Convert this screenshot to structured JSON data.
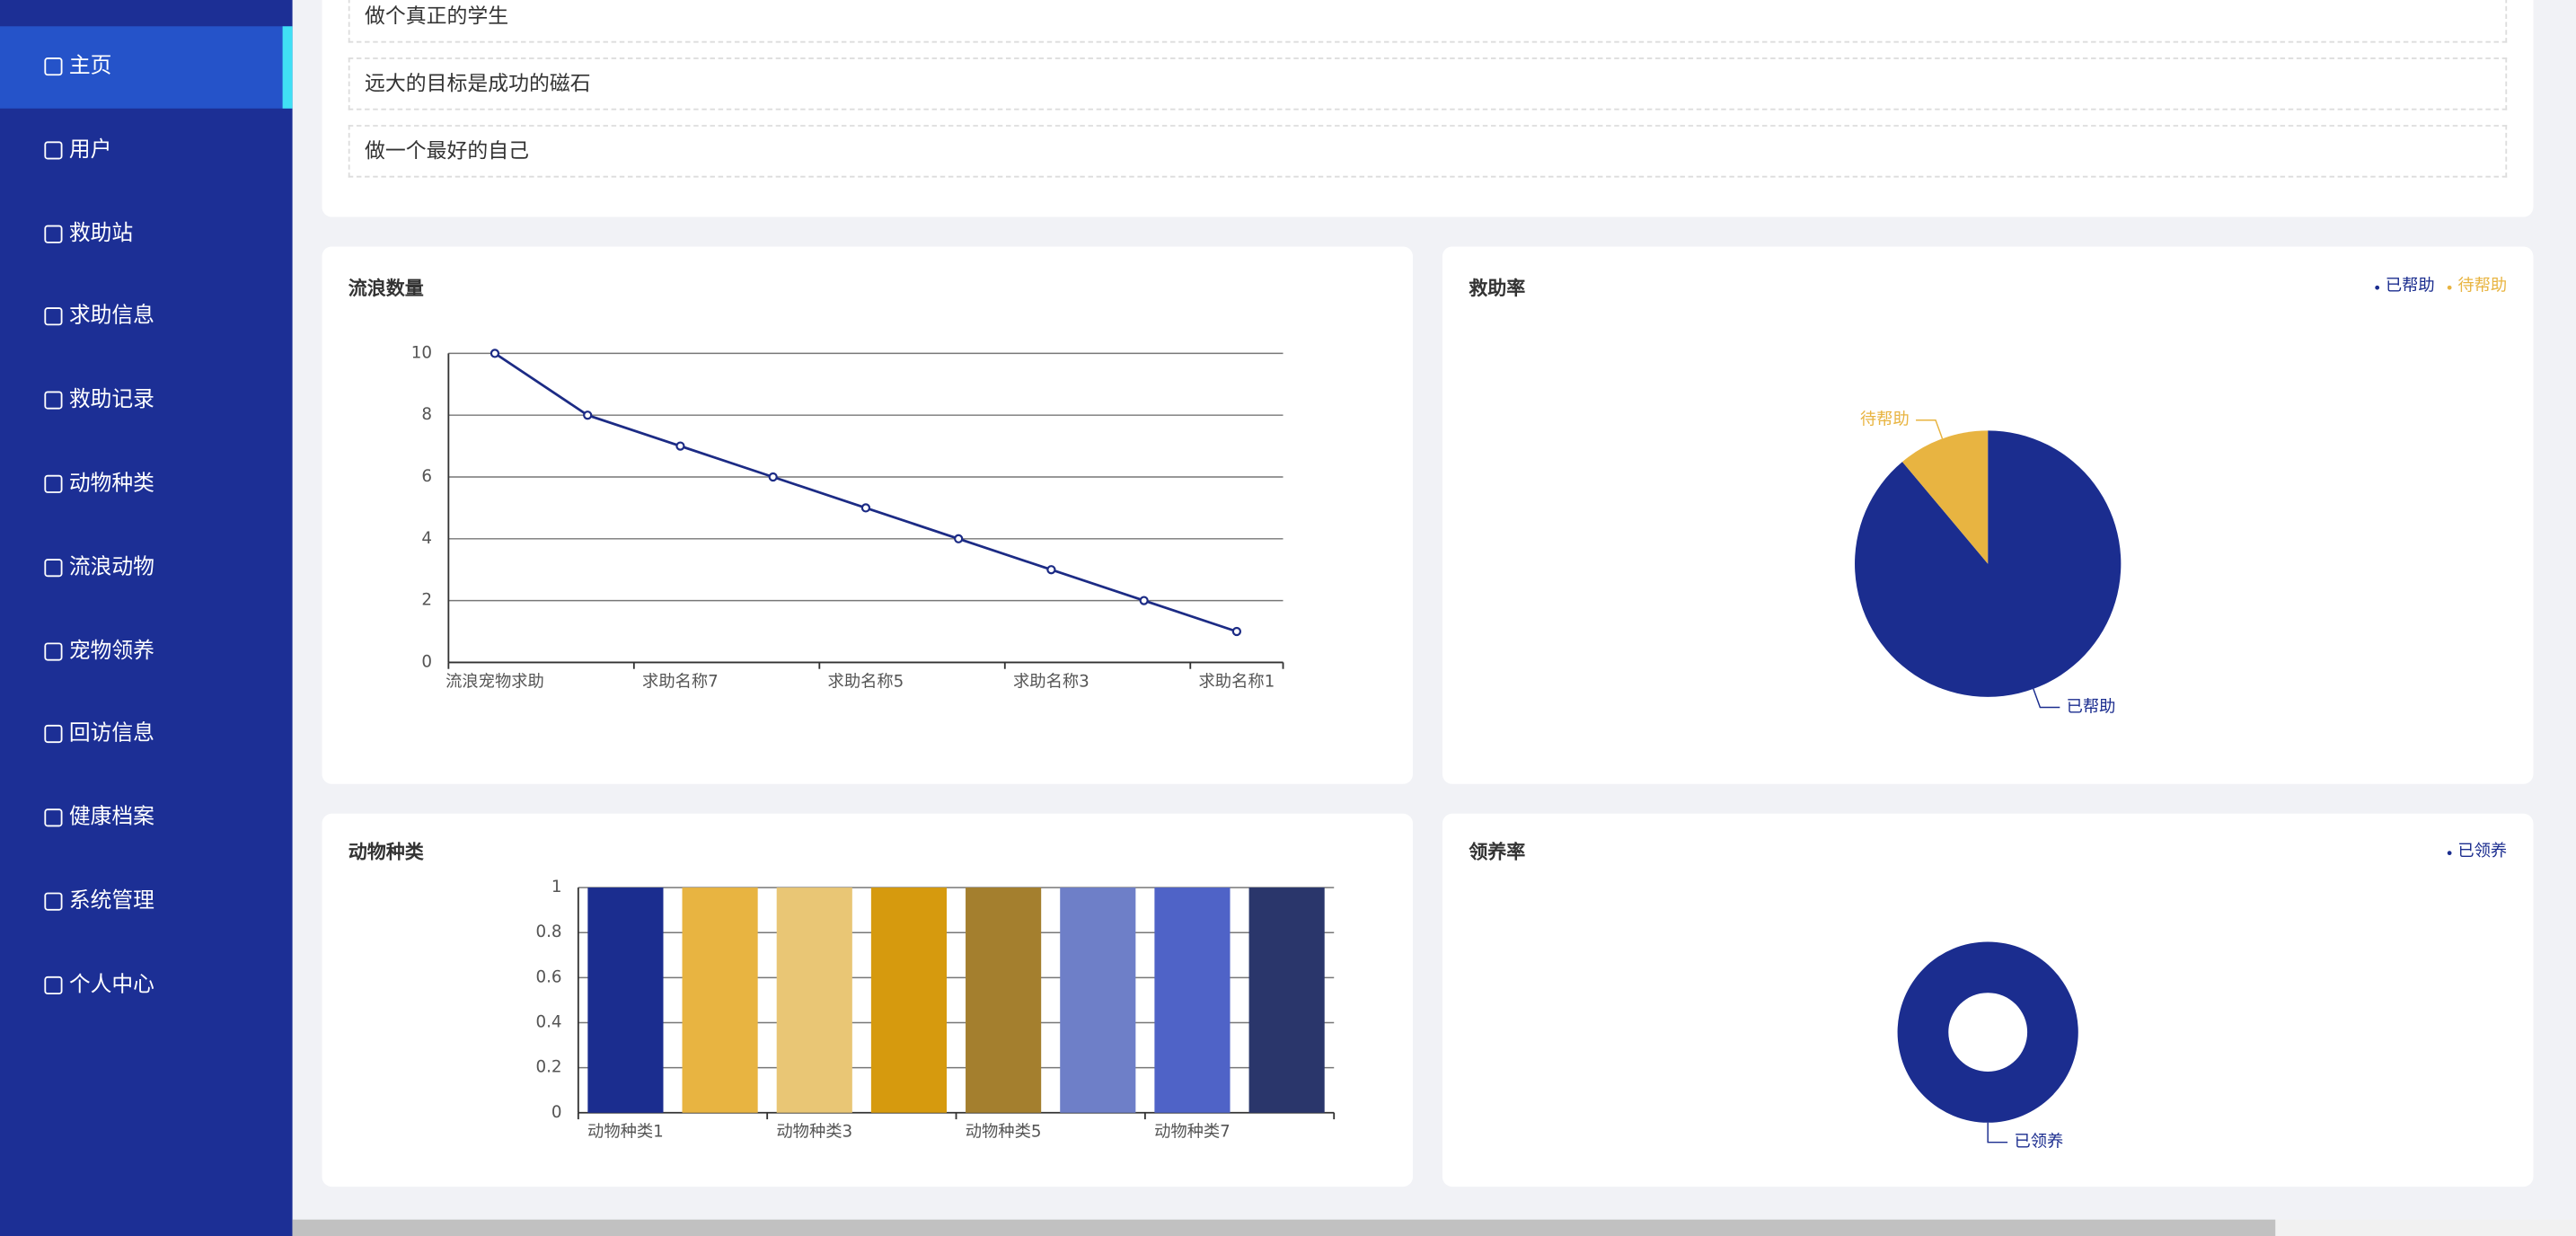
{
  "sidebar": {
    "items": [
      "主页",
      "用户",
      "救助站",
      "求助信息",
      "救助记录",
      "动物种类",
      "流浪动物",
      "宠物领养",
      "回访信息",
      "健康档案",
      "系统管理",
      "个人中心"
    ],
    "active": 0
  },
  "notices": [
    "做个真正的学生",
    "远大的目标是成功的磁石",
    "做一个最好的自己"
  ],
  "chart_data": [
    {
      "type": "line",
      "title": "流浪数量",
      "color": "#1c2b85",
      "categories": [
        "流浪宠物求助",
        null,
        "求助名称7",
        null,
        "求助名称5",
        null,
        "求助名称3",
        null,
        "求助名称1"
      ],
      "values": [
        10,
        8,
        7,
        6,
        5,
        4,
        3,
        2,
        1
      ],
      "ylim": [
        0,
        10
      ],
      "yticks": [
        0,
        2,
        4,
        6,
        8,
        10
      ],
      "grid": true
    },
    {
      "type": "pie",
      "title": "救助率",
      "categories": [
        "已帮助",
        "待帮助"
      ],
      "values": [
        8,
        1
      ],
      "colors": [
        "#1b2d8f",
        "#e8b441"
      ],
      "legend": "top-right"
    },
    {
      "type": "bar",
      "title": "动物种类",
      "categories": [
        "动物种类1",
        null,
        "动物种类3",
        null,
        "动物种类5",
        null,
        "动物种类7",
        null
      ],
      "values": [
        1,
        1,
        1,
        1,
        1,
        1,
        1,
        1
      ],
      "colors": [
        "#1b2d8f",
        "#e8b441",
        "#e9c675",
        "#d69a0e",
        "#a47f2e",
        "#6e7fc8",
        "#4f63c7",
        "#2a366b"
      ],
      "ylim": [
        0,
        1
      ],
      "yticks": [
        0,
        0.2,
        0.4,
        0.6,
        0.8,
        1
      ],
      "grid": true
    },
    {
      "type": "donut",
      "title": "领养率",
      "categories": [
        "已领养"
      ],
      "values": [
        1
      ],
      "colors": [
        "#1b2d8f"
      ],
      "legend": "top-right"
    }
  ]
}
